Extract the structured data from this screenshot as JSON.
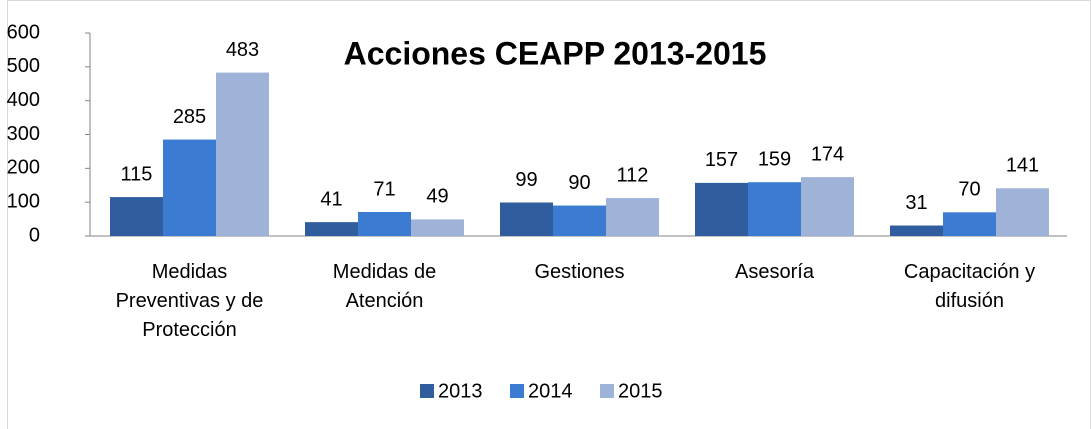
{
  "chart_data": {
    "type": "bar",
    "title": "Acciones CEAPP 2013-2015",
    "categories": [
      "Medidas Preventivas y de Protección",
      "Medidas de Atención",
      "Gestiones",
      "Asesoría",
      "Capacitación y difusión"
    ],
    "series": [
      {
        "name": "2013",
        "color": "#2f5d9e",
        "values": [
          115,
          41,
          99,
          157,
          31
        ]
      },
      {
        "name": "2014",
        "color": "#3b7bd1",
        "values": [
          285,
          71,
          90,
          159,
          70
        ]
      },
      {
        "name": "2015",
        "color": "#9fb3d9",
        "values": [
          483,
          49,
          112,
          174,
          141
        ]
      }
    ],
    "ylim": [
      0,
      600
    ],
    "yticks": [
      0,
      100,
      200,
      300,
      400,
      500,
      600
    ],
    "grid": false,
    "legend": "bottom"
  }
}
